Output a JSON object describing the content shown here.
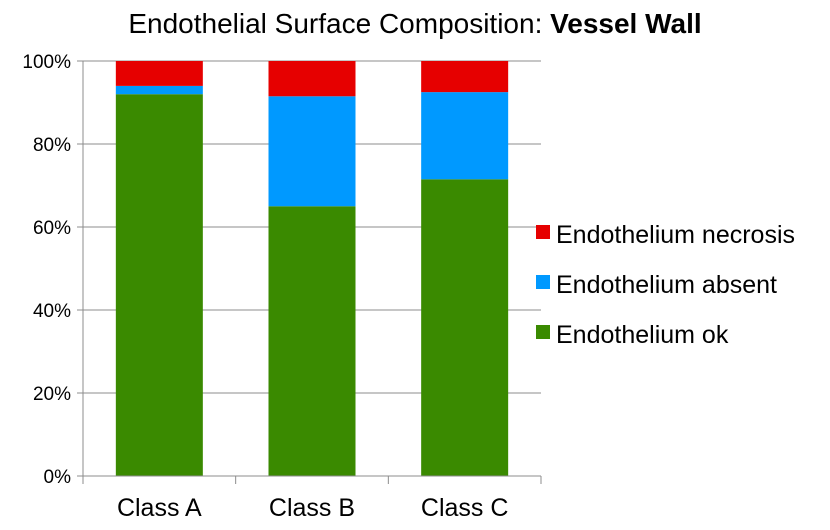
{
  "chart_data": {
    "type": "bar",
    "stacked": true,
    "stack_mode": "percent",
    "title": "Endothelial Surface Composition: ",
    "title_bold": "Vessel Wall",
    "xlabel": "",
    "ylabel": "",
    "categories": [
      "Class A",
      "Class B",
      "Class C"
    ],
    "ylim": [
      0,
      100
    ],
    "y_ticks": [
      0,
      20,
      40,
      60,
      80,
      100
    ],
    "y_tick_labels": [
      "0%",
      "20%",
      "40%",
      "60%",
      "80%",
      "100%"
    ],
    "grid": true,
    "legend_position": "right",
    "series": [
      {
        "name": "Endothelium ok",
        "color": "#3a8a00",
        "values": [
          92,
          65,
          71.5
        ]
      },
      {
        "name": "Endothelium absent",
        "color": "#0099ff",
        "values": [
          2,
          26.5,
          21
        ]
      },
      {
        "name": "Endothelium necrosis",
        "color": "#e60000",
        "values": [
          6,
          8.5,
          7.5
        ]
      }
    ]
  }
}
